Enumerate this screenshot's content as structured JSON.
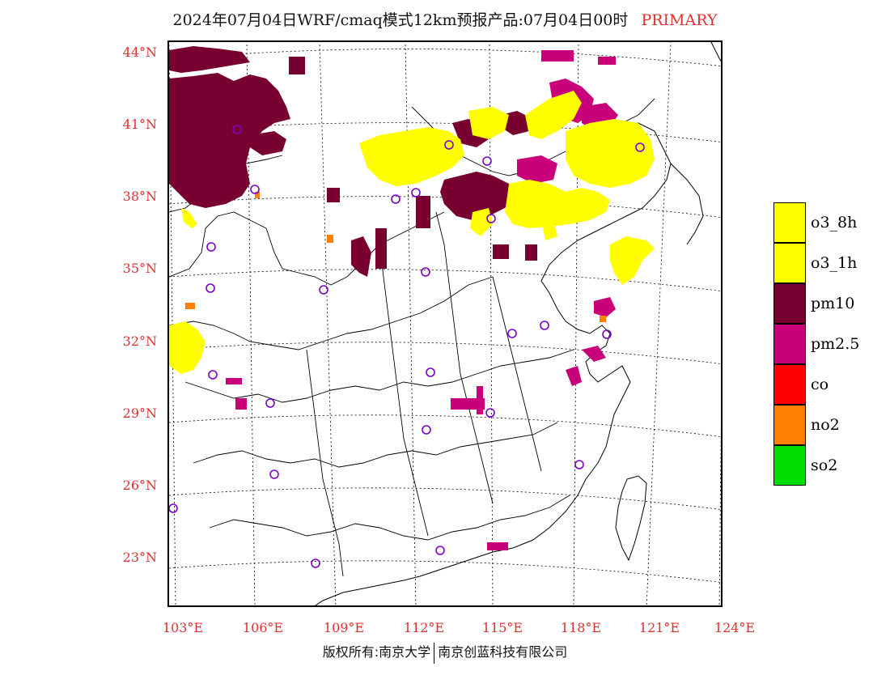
{
  "title": {
    "main": "2024年07月04日WRF/cmaq模式12km预报产品:07月04日00时",
    "tag": "PRIMARY"
  },
  "axes": {
    "lat_labels": [
      "44°N",
      "41°N",
      "38°N",
      "35°N",
      "32°N",
      "29°N",
      "26°N",
      "23°N"
    ],
    "lon_labels": [
      "103°E",
      "106°E",
      "109°E",
      "112°E",
      "115°E",
      "118°E",
      "121°E",
      "124°E"
    ]
  },
  "legend": [
    {
      "label": "o3_8h",
      "color": "#ffff00"
    },
    {
      "label": "o3_1h",
      "color": "#ffff00"
    },
    {
      "label": "pm10",
      "color": "#780030"
    },
    {
      "label": "pm2.5",
      "color": "#c8007a"
    },
    {
      "label": "co",
      "color": "#ff0000"
    },
    {
      "label": "no2",
      "color": "#ff8000"
    },
    {
      "label": "so2",
      "color": "#00dd00"
    }
  ],
  "footer": {
    "left": "版权所有:南京大学",
    "right": "南京创蓝科技有限公司"
  },
  "colors": {
    "accent": "#e03030",
    "o3": "#ffff00",
    "pm10": "#780030",
    "pm25": "#c8007a",
    "station": "#7a00cc"
  }
}
